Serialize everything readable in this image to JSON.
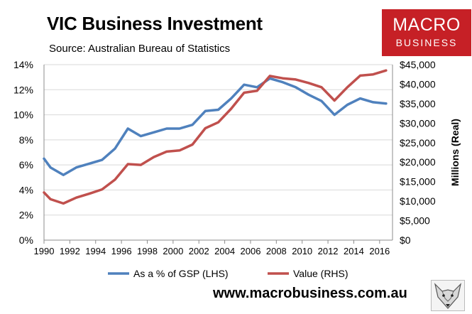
{
  "header": {
    "title": "VIC Business Investment",
    "source": "Source: Australian Bureau of Statistics"
  },
  "logo": {
    "line1": "MACRO",
    "line2": "BUSINESS"
  },
  "footer": {
    "website": "www.macrobusiness.com.au"
  },
  "colors": {
    "lhs_series": "#4f81bd",
    "rhs_series": "#c0504d",
    "logo_bg": "#c62026",
    "gridline": "#d9d9d9"
  },
  "icons": {
    "logo_mascot": "fox-head-icon"
  },
  "chart_data": {
    "type": "line",
    "title": "VIC Business Investment",
    "xlabel": "",
    "ylabel_left": "",
    "ylabel_right": "Millions (Real)",
    "xlim": [
      1990,
      2017
    ],
    "ylim_left": [
      0,
      14
    ],
    "ylim_right": [
      0,
      45000
    ],
    "x_tick_labels": [
      "1990",
      "1992",
      "1994",
      "1996",
      "1998",
      "2000",
      "2002",
      "2004",
      "2006",
      "2008",
      "2010",
      "2012",
      "2014",
      "2016"
    ],
    "x_tick_values": [
      1990,
      1992,
      1994,
      1996,
      1998,
      2000,
      2002,
      2004,
      2006,
      2008,
      2010,
      2012,
      2014,
      2016
    ],
    "y_left_tick_values": [
      0,
      2,
      4,
      6,
      8,
      10,
      12,
      14
    ],
    "y_left_tick_labels": [
      "0%",
      "2%",
      "4%",
      "6%",
      "8%",
      "10%",
      "12%",
      "14%"
    ],
    "y_right_tick_values": [
      0,
      5000,
      10000,
      15000,
      20000,
      25000,
      30000,
      35000,
      40000,
      45000
    ],
    "y_right_tick_labels": [
      "$0",
      "$5,000",
      "$10,000",
      "$15,000",
      "$20,000",
      "$25,000",
      "$30,000",
      "$35,000",
      "$40,000",
      "$45,000"
    ],
    "grid": true,
    "legend_position": "bottom",
    "series": [
      {
        "name": "As a % of GSP (LHS)",
        "axis": "left",
        "color": "#4f81bd",
        "x": [
          1990,
          1990.5,
          1991.5,
          1992.5,
          1993.5,
          1994.5,
          1995.5,
          1996.5,
          1997.5,
          1998.5,
          1999.5,
          2000.5,
          2001.5,
          2002.5,
          2003.5,
          2004.5,
          2005.5,
          2006.5,
          2007.5,
          2008.5,
          2009.5,
          2010.5,
          2011.5,
          2012.5,
          2013.5,
          2014.5,
          2015.5,
          2016.5
        ],
        "values": [
          6.5,
          5.8,
          5.2,
          5.8,
          6.1,
          6.4,
          7.3,
          8.9,
          8.3,
          8.6,
          8.9,
          8.9,
          9.2,
          10.3,
          10.4,
          11.3,
          12.4,
          12.2,
          12.9,
          12.6,
          12.2,
          11.6,
          11.1,
          10.0,
          10.8,
          11.3,
          11.0,
          10.9
        ]
      },
      {
        "name": "Value (RHS)",
        "axis": "right",
        "color": "#c0504d",
        "x": [
          1990,
          1990.5,
          1991.5,
          1992.5,
          1993.5,
          1994.5,
          1995.5,
          1996.5,
          1997.5,
          1998.5,
          1999.5,
          2000.5,
          2001.5,
          2002.5,
          2003.5,
          2004.5,
          2005.5,
          2006.5,
          2007.5,
          2008.5,
          2009.5,
          2010.5,
          2011.5,
          2012.5,
          2013.5,
          2014.5,
          2015.5,
          2016.5
        ],
        "values": [
          12200,
          10500,
          9400,
          10900,
          11900,
          13000,
          15500,
          19500,
          19300,
          21300,
          22700,
          23000,
          24500,
          28700,
          30200,
          33700,
          37800,
          38300,
          42100,
          41500,
          41200,
          40300,
          39200,
          35800,
          39200,
          42200,
          42500,
          43500
        ]
      }
    ]
  }
}
